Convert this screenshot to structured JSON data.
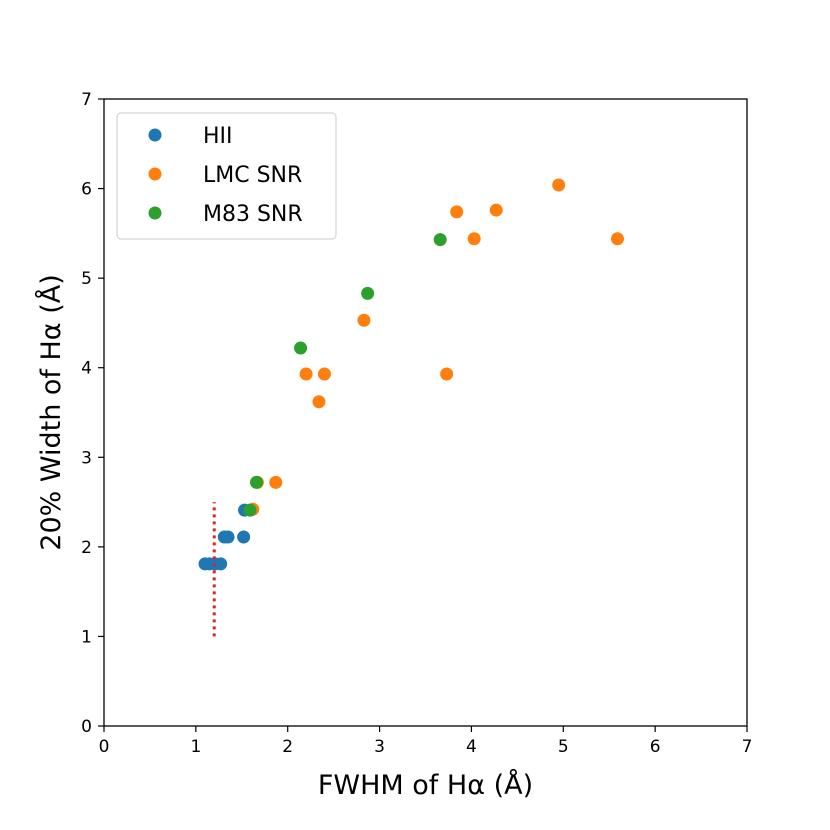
{
  "chart_data": {
    "type": "scatter",
    "title": "",
    "xlabel": "FWHM of Hα (Å)",
    "ylabel": "20% Width of Hα (Å)",
    "xlim": [
      0,
      7
    ],
    "ylim": [
      0,
      7
    ],
    "xticks": [
      "0",
      "1",
      "2",
      "3",
      "4",
      "5",
      "6",
      "7"
    ],
    "yticks": [
      "0",
      "1",
      "2",
      "3",
      "4",
      "5",
      "6",
      "7"
    ],
    "legend_position": "top-left",
    "series": [
      {
        "name": "HII",
        "color": "#1f77b4",
        "points": [
          {
            "x": 1.1,
            "y": 1.81
          },
          {
            "x": 1.15,
            "y": 1.81
          },
          {
            "x": 1.21,
            "y": 1.81
          },
          {
            "x": 1.27,
            "y": 1.81
          },
          {
            "x": 1.31,
            "y": 2.11
          },
          {
            "x": 1.35,
            "y": 2.11
          },
          {
            "x": 1.52,
            "y": 2.11
          },
          {
            "x": 1.53,
            "y": 2.41
          }
        ]
      },
      {
        "name": "LMC SNR",
        "color": "#ff7f0e",
        "points": [
          {
            "x": 1.62,
            "y": 2.42
          },
          {
            "x": 1.67,
            "y": 2.72
          },
          {
            "x": 1.87,
            "y": 2.72
          },
          {
            "x": 2.2,
            "y": 3.93
          },
          {
            "x": 2.34,
            "y": 3.62
          },
          {
            "x": 2.4,
            "y": 3.93
          },
          {
            "x": 2.83,
            "y": 4.53
          },
          {
            "x": 3.73,
            "y": 3.93
          },
          {
            "x": 3.84,
            "y": 5.74
          },
          {
            "x": 4.03,
            "y": 5.44
          },
          {
            "x": 4.27,
            "y": 5.76
          },
          {
            "x": 4.95,
            "y": 6.04
          },
          {
            "x": 5.59,
            "y": 5.44
          }
        ]
      },
      {
        "name": "M83 SNR",
        "color": "#2ca02c",
        "points": [
          {
            "x": 1.59,
            "y": 2.41
          },
          {
            "x": 1.66,
            "y": 2.72
          },
          {
            "x": 2.14,
            "y": 4.22
          },
          {
            "x": 2.87,
            "y": 4.83
          },
          {
            "x": 3.66,
            "y": 5.43
          }
        ]
      }
    ],
    "annotations": [
      {
        "type": "vertical-dotted-line",
        "color": "#d62728",
        "x": 1.2,
        "y_range": [
          1.0,
          2.5
        ]
      }
    ]
  }
}
